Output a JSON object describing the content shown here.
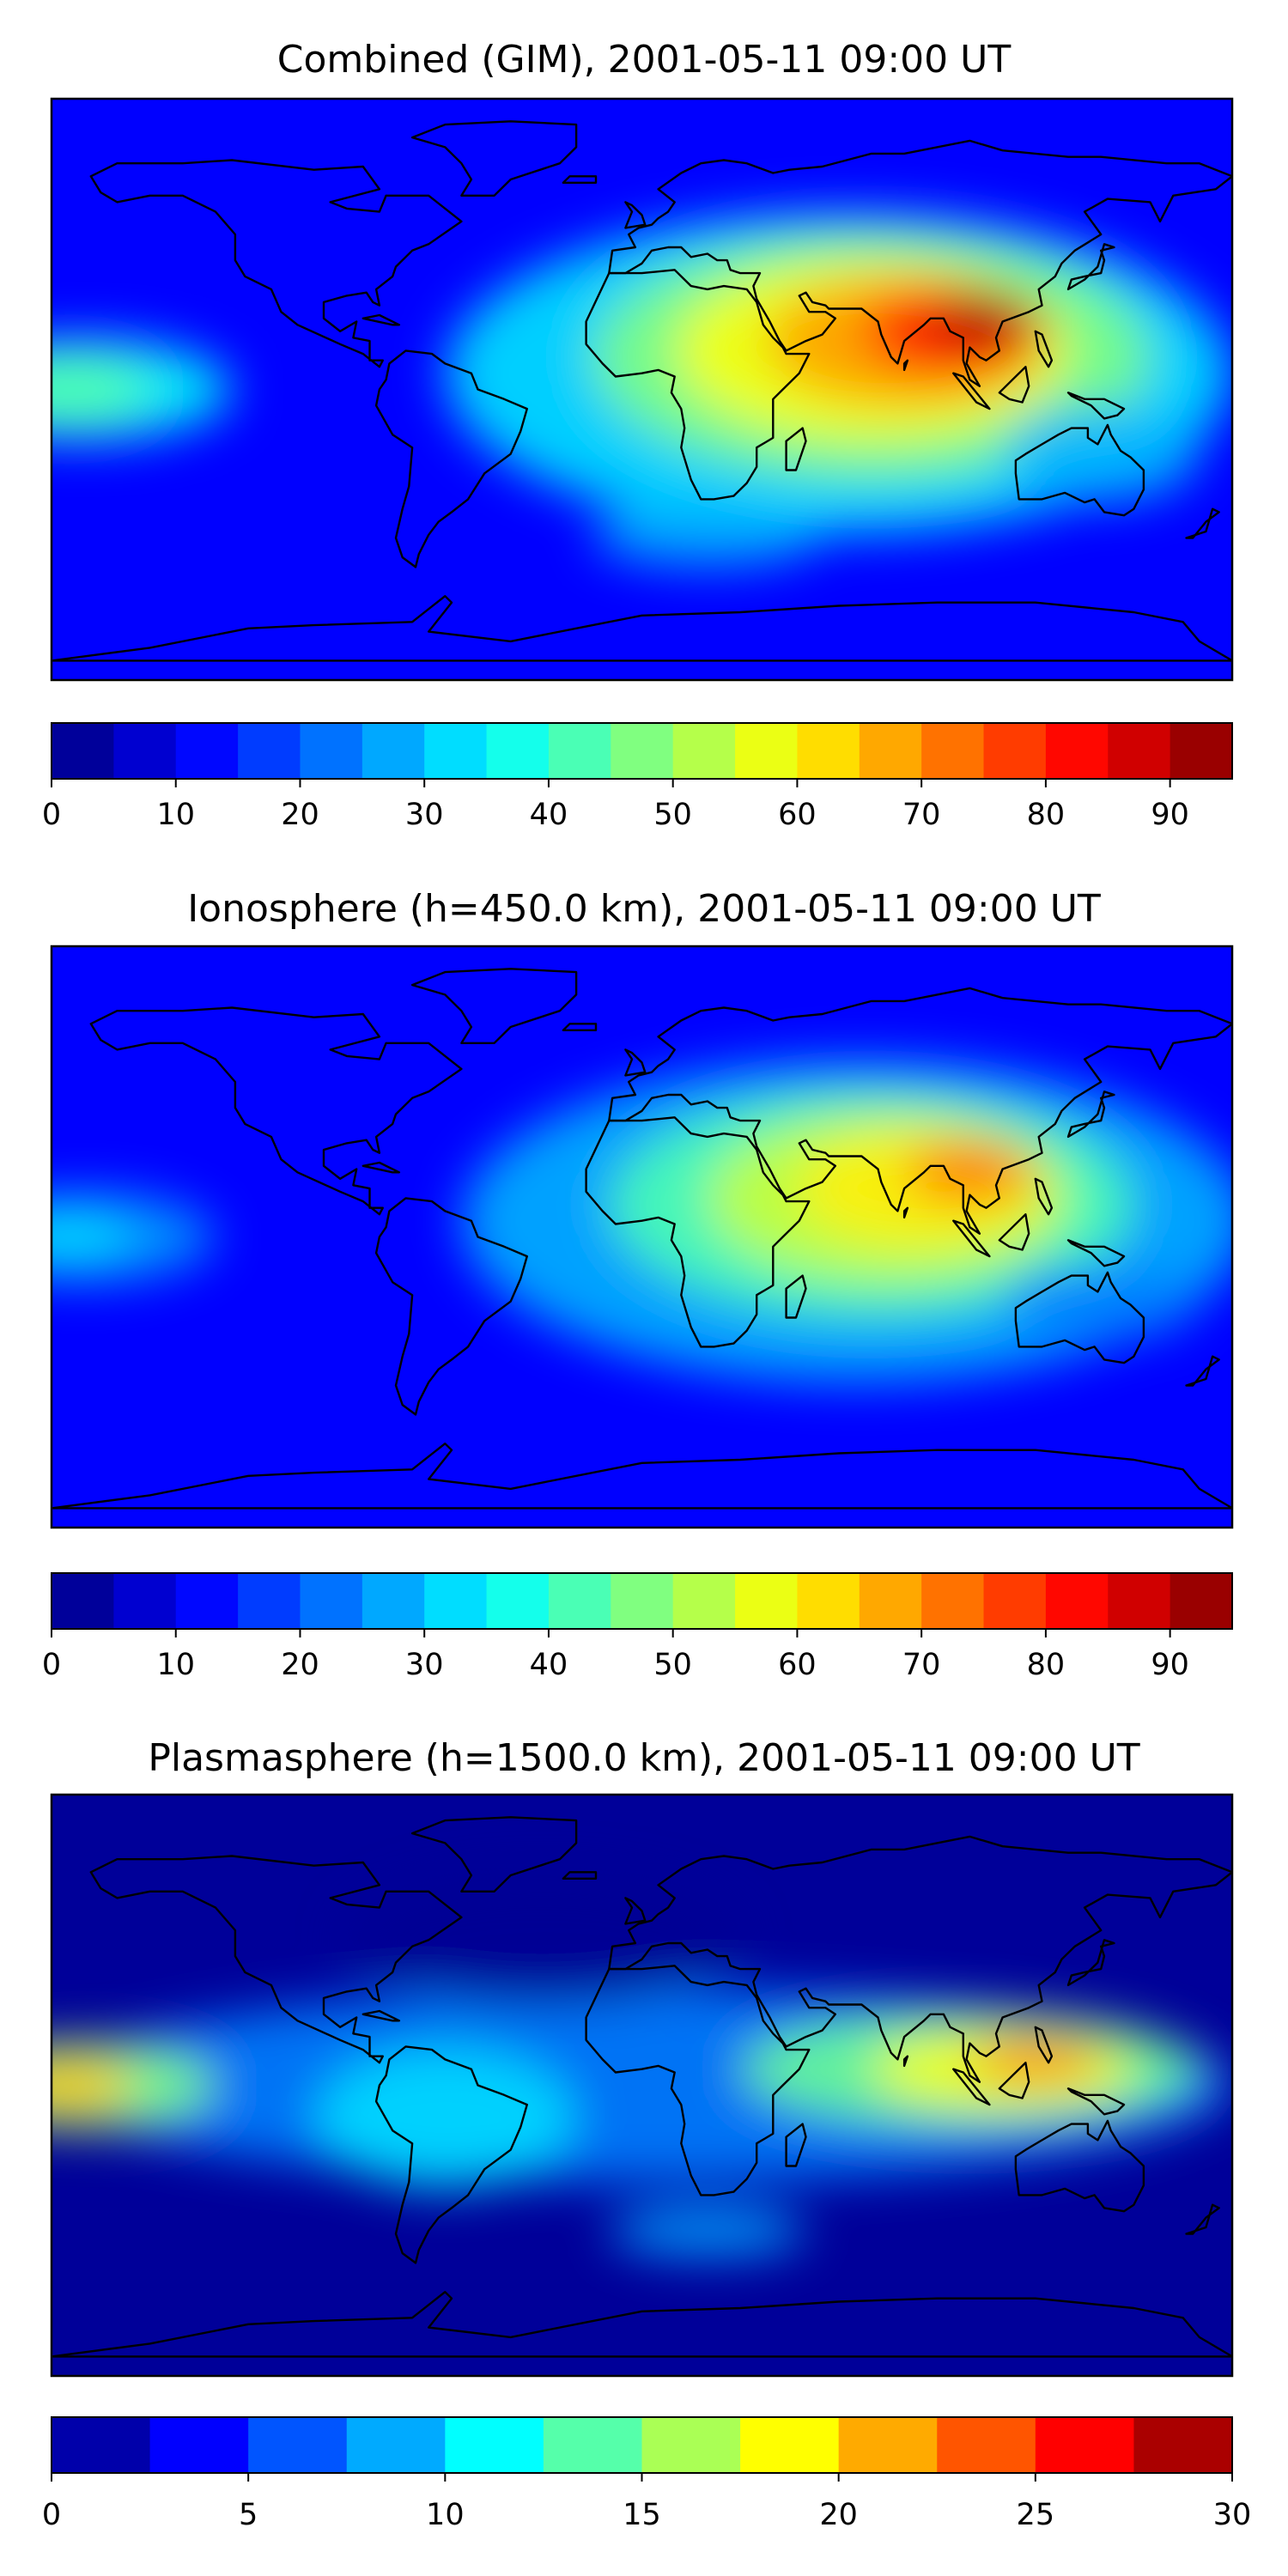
{
  "figure": {
    "panels": [
      {
        "title": "Combined (GIM), 2001-05-11 09:00 UT",
        "colorbar": {
          "min": 0,
          "max": 95,
          "step": 5,
          "ticks": [
            "0",
            "10",
            "20",
            "30",
            "40",
            "50",
            "60",
            "70",
            "80",
            "90"
          ]
        }
      },
      {
        "title": "Ionosphere  (h=450.0 km), 2001-05-11 09:00 UT",
        "colorbar": {
          "min": 0,
          "max": 95,
          "step": 5,
          "ticks": [
            "0",
            "10",
            "20",
            "30",
            "40",
            "50",
            "60",
            "70",
            "80",
            "90"
          ]
        }
      },
      {
        "title": "Plasmasphere (h=1500.0 km), 2001-05-11 09:00 UT",
        "colorbar": {
          "min": 0,
          "max": 30,
          "step": 2.5,
          "ticks": [
            "0",
            "5",
            "10",
            "15",
            "20",
            "25",
            "30"
          ]
        }
      }
    ]
  },
  "colormap": "jet",
  "chart_data": [
    {
      "type": "heatmap",
      "title": "Combined (GIM), 2001-05-11 09:00 UT",
      "projection": "equirectangular world map with coastlines",
      "xlim": [
        -180,
        180
      ],
      "ylim": [
        -90,
        90
      ],
      "color_range": [
        0,
        95
      ],
      "levels_step": 5,
      "colorbar_ticks": [
        0,
        10,
        20,
        30,
        40,
        50,
        60,
        70,
        80,
        90
      ],
      "features": [
        {
          "description": "daytime maximum over South/Southeast Asia",
          "lon": 105,
          "lat": 20,
          "value": 93
        },
        {
          "description": "secondary maximum",
          "lon": 55,
          "lat": 15,
          "value": 70
        },
        {
          "description": "Pacific local maximum",
          "lon": -175,
          "lat": 0,
          "value": 45
        }
      ]
    },
    {
      "type": "heatmap",
      "title": "Ionosphere  (h=450.0 km), 2001-05-11 09:00 UT",
      "projection": "equirectangular world map with coastlines",
      "xlim": [
        -180,
        180
      ],
      "ylim": [
        -90,
        90
      ],
      "color_range": [
        0,
        95
      ],
      "levels_step": 5,
      "colorbar_ticks": [
        0,
        10,
        20,
        30,
        40,
        50,
        60,
        70,
        80,
        90
      ],
      "features": [
        {
          "description": "daytime maximum over South/Southeast Asia",
          "lon": 100,
          "lat": 20,
          "value": 77
        },
        {
          "description": "secondary maximum",
          "lon": 55,
          "lat": 15,
          "value": 62
        },
        {
          "description": "Pacific local maximum",
          "lon": -175,
          "lat": 0,
          "value": 32
        }
      ]
    },
    {
      "type": "heatmap",
      "title": "Plasmasphere (h=1500.0 km), 2001-05-11 09:00 UT",
      "projection": "equirectangular world map with coastlines",
      "xlim": [
        -180,
        180
      ],
      "ylim": [
        -90,
        90
      ],
      "color_range": [
        0,
        30
      ],
      "levels_step": 2.5,
      "colorbar_ticks": [
        0,
        5,
        10,
        15,
        20,
        25,
        30
      ],
      "features": [
        {
          "description": "maximum near dateline",
          "lon": -175,
          "lat": 0,
          "value": 22
        },
        {
          "description": "maximum over Southeast Asia",
          "lon": 110,
          "lat": 5,
          "value": 21
        },
        {
          "description": "minimum over North Atlantic",
          "lon": -40,
          "lat": 50,
          "value": 1
        }
      ]
    }
  ]
}
